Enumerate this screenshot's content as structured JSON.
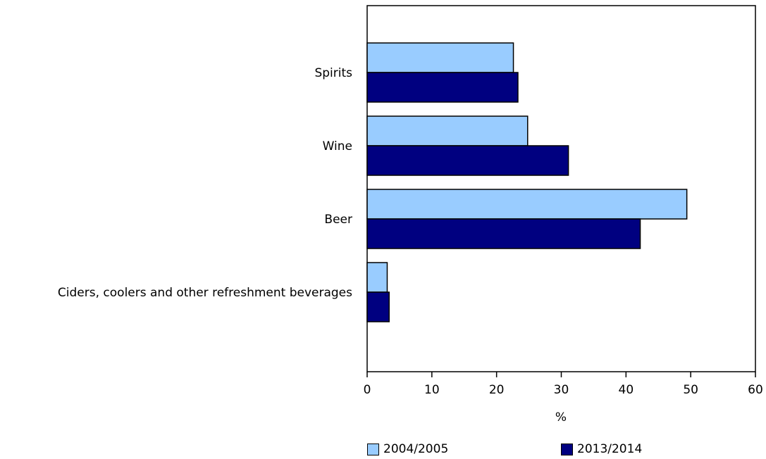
{
  "chart_data": {
    "type": "bar",
    "orientation": "horizontal",
    "categories": [
      "Spirits",
      "Wine",
      "Beer",
      "Ciders, coolers and other refreshment beverages"
    ],
    "series": [
      {
        "name": "2004/2005",
        "color": "#99ccff",
        "values": [
          22.6,
          24.8,
          49.4,
          3.1
        ]
      },
      {
        "name": "2013/2014",
        "color": "#000080",
        "values": [
          23.3,
          31.1,
          42.2,
          3.4
        ]
      }
    ],
    "xlabel": "%",
    "xlim": [
      0,
      60
    ],
    "xticks": [
      "0",
      "10",
      "20",
      "30",
      "40",
      "50",
      "60"
    ],
    "grid": false,
    "legend_position": "bottom"
  }
}
